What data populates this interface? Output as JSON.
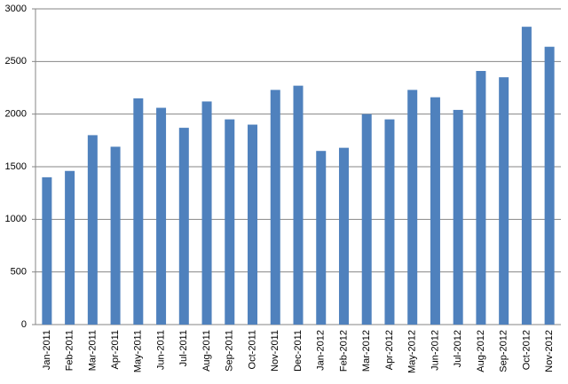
{
  "chart_data": {
    "type": "bar",
    "categories": [
      "Jan-2011",
      "Feb-2011",
      "Mar-2011",
      "Apr-2011",
      "May-2011",
      "Jun-2011",
      "Jul-2011",
      "Aug-2011",
      "Sep-2011",
      "Oct-2011",
      "Nov-2011",
      "Dec-2011",
      "Jan-2012",
      "Feb-2012",
      "Mar-2012",
      "Apr-2012",
      "May-2012",
      "Jun-2012",
      "Jul-2012",
      "Aug-2012",
      "Sep-2012",
      "Oct-2012",
      "Nov-2012"
    ],
    "values": [
      1400,
      1460,
      1800,
      1690,
      2150,
      2060,
      1870,
      2120,
      1950,
      1900,
      2230,
      2270,
      1650,
      1680,
      2000,
      1950,
      2230,
      2160,
      2040,
      2410,
      2350,
      2830,
      2640
    ],
    "color": "#4f81bd",
    "ylim": [
      0,
      3000
    ],
    "yticks": [
      0,
      500,
      1000,
      1500,
      2000,
      2500,
      3000
    ],
    "grid": true
  }
}
